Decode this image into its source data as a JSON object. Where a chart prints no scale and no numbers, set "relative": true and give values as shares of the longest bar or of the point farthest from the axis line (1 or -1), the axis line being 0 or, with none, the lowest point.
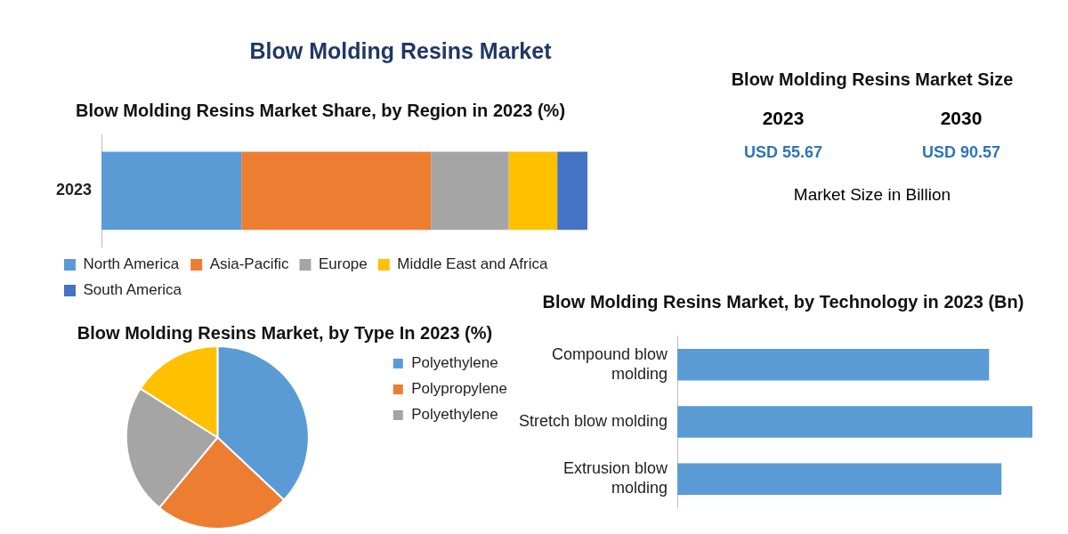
{
  "chart_data": [
    {
      "type": "other",
      "title": "Blow Molding Resins Market"
    },
    {
      "type": "bar",
      "title": "Blow Molding Resins Market Share, by Region in 2023 (%)",
      "orientation": "horizontal",
      "stacked": true,
      "relative": true,
      "legend": "bottom",
      "categories": [
        "2023"
      ],
      "series": [
        {
          "name": "North America",
          "color": "#5b9bd5",
          "values": [
            0.288
          ]
        },
        {
          "name": "Asia-Pacific",
          "color": "#ed7d31",
          "values": [
            0.39
          ]
        },
        {
          "name": "Europe",
          "color": "#a5a5a5",
          "values": [
            0.16
          ]
        },
        {
          "name": "Middle East and Africa",
          "color": "#ffc000",
          "values": [
            0.1
          ]
        },
        {
          "name": "South America",
          "color": "#4472c4",
          "values": [
            0.062
          ]
        }
      ]
    },
    {
      "type": "other",
      "title": "Blow Molding Resins Market Size",
      "annotations": [
        "2023",
        "2030",
        "USD 55.67",
        "USD 90.57",
        "Market Size in Billion"
      ]
    },
    {
      "type": "pie",
      "title": "Blow Molding Resins Market, by Type In 2023 (%)",
      "legend": "right",
      "categories": [
        "Polyethylene",
        "Polypropylene",
        "Polyethylene",
        null
      ],
      "values": [
        37,
        24,
        23,
        16
      ],
      "colors": [
        "#5b9bd5",
        "#ed7d31",
        "#a5a5a5",
        "#ffc000"
      ]
    },
    {
      "type": "bar",
      "title": "Blow Molding Resins Market, by Technology in 2023 (Bn)",
      "orientation": "horizontal",
      "relative": true,
      "categories": [
        "Compound blow molding",
        "Stretch blow molding",
        "Extrusion blow molding"
      ],
      "series": [
        {
          "color": "#5b9bd5",
          "values": [
            0.878,
            1,
            0.913
          ]
        }
      ]
    }
  ]
}
